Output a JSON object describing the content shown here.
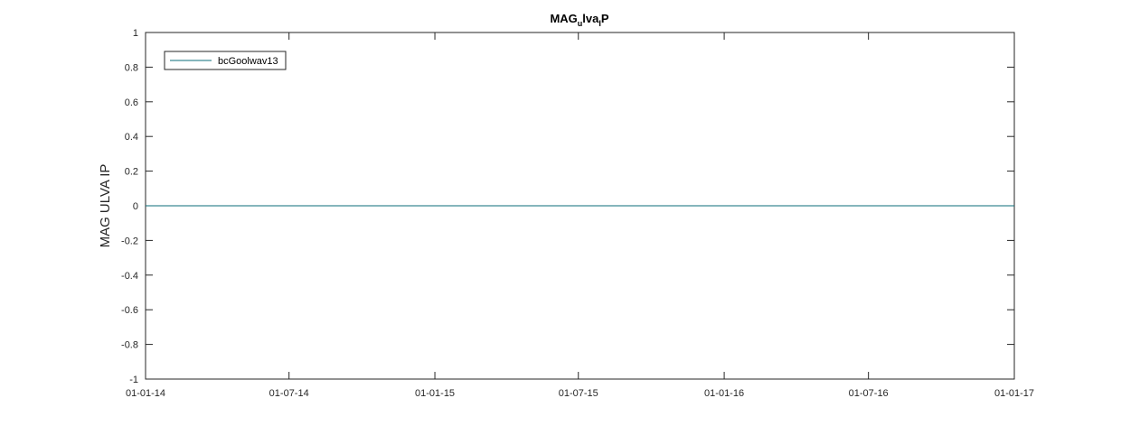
{
  "chart_data": {
    "type": "line",
    "title": "MAG_ulva_IP",
    "title_parts": {
      "a": "MAG",
      "sub1": "u",
      "b": "lva",
      "sub2": "I",
      "c": "P"
    },
    "xlabel": "",
    "ylabel": "MAG ULVA IP",
    "x_ticks": [
      "01-01-14",
      "01-07-14",
      "01-01-15",
      "01-07-15",
      "01-01-16",
      "01-07-16",
      "01-01-17"
    ],
    "x_range": [
      "01-01-14",
      "01-01-17"
    ],
    "ylim": [
      -1,
      1
    ],
    "y_ticks": [
      "1",
      "0.8",
      "0.6",
      "0.4",
      "0.2",
      "0",
      "-0.2",
      "-0.4",
      "-0.6",
      "-0.8",
      "-1"
    ],
    "grid": false,
    "legend_position": "top-left",
    "series": [
      {
        "name": "bcGoolwav13",
        "color": "#0b6e7a",
        "x": [
          "01-01-14",
          "01-01-17"
        ],
        "y": [
          0,
          0
        ]
      }
    ]
  }
}
